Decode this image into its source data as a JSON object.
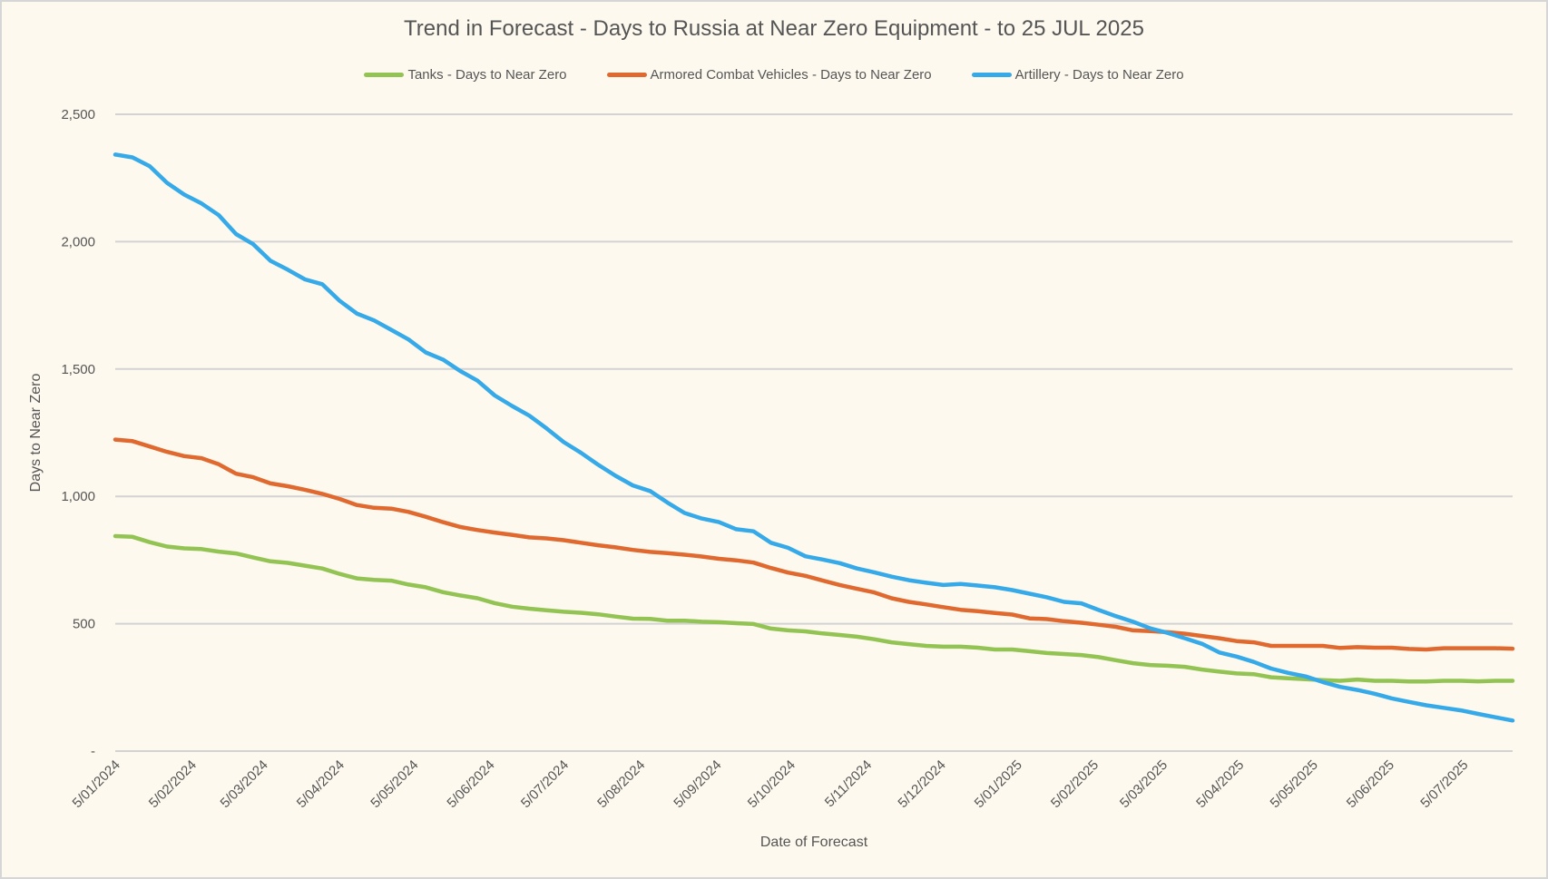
{
  "chart_data": {
    "type": "line",
    "title": "Trend in Forecast - Days to Russia at Near Zero Equipment - to 25 JUL 2025",
    "xlabel": "Date of Forecast",
    "ylabel": "Days to Near Zero",
    "ylim": [
      0,
      2500
    ],
    "yticks": [
      0,
      500,
      1000,
      1500,
      2000,
      2500
    ],
    "ytick_labels": [
      "-",
      "500",
      "1,000",
      "1,500",
      "2,000",
      "2,500"
    ],
    "xlim": [
      "5/01/2024",
      "25/07/2025"
    ],
    "xtick_labels": [
      "5/01/2024",
      "5/02/2024",
      "5/03/2024",
      "5/04/2024",
      "5/05/2024",
      "5/06/2024",
      "5/07/2024",
      "5/08/2024",
      "5/09/2024",
      "5/10/2024",
      "5/11/2024",
      "5/12/2024",
      "5/01/2025",
      "5/02/2025",
      "5/03/2025",
      "5/04/2025",
      "5/05/2025",
      "5/06/2025",
      "5/07/2025"
    ],
    "grid": true,
    "legend_position": "top",
    "x": [
      "5/01/2024",
      "12/01/2024",
      "19/01/2024",
      "26/01/2024",
      "2/02/2024",
      "9/02/2024",
      "16/02/2024",
      "23/02/2024",
      "1/03/2024",
      "8/03/2024",
      "15/03/2024",
      "22/03/2024",
      "29/03/2024",
      "5/04/2024",
      "12/04/2024",
      "19/04/2024",
      "26/04/2024",
      "3/05/2024",
      "10/05/2024",
      "17/05/2024",
      "24/05/2024",
      "31/05/2024",
      "7/06/2024",
      "14/06/2024",
      "21/06/2024",
      "28/06/2024",
      "5/07/2024",
      "12/07/2024",
      "19/07/2024",
      "26/07/2024",
      "2/08/2024",
      "9/08/2024",
      "16/08/2024",
      "23/08/2024",
      "30/08/2024",
      "6/09/2024",
      "13/09/2024",
      "20/09/2024",
      "27/09/2024",
      "4/10/2024",
      "11/10/2024",
      "18/10/2024",
      "25/10/2024",
      "1/11/2024",
      "8/11/2024",
      "15/11/2024",
      "22/11/2024",
      "29/11/2024",
      "6/12/2024",
      "13/12/2024",
      "20/12/2024",
      "27/12/2024",
      "3/01/2025",
      "10/01/2025",
      "17/01/2025",
      "24/01/2025",
      "31/01/2025",
      "7/02/2025",
      "14/02/2025",
      "21/02/2025",
      "28/02/2025",
      "7/03/2025",
      "14/03/2025",
      "21/03/2025",
      "28/03/2025",
      "4/04/2025",
      "11/04/2025",
      "18/04/2025",
      "25/04/2025",
      "2/05/2025",
      "9/05/2025",
      "16/05/2025",
      "23/05/2025",
      "30/05/2025",
      "6/06/2025",
      "13/06/2025",
      "20/06/2025",
      "27/06/2025",
      "4/07/2025",
      "11/07/2025",
      "18/07/2025",
      "25/07/2025"
    ],
    "series": [
      {
        "name": "Tanks - Days to Near Zero",
        "color": "#92c353",
        "values": [
          844,
          841,
          820,
          803,
          796,
          793,
          783,
          776,
          760,
          745,
          739,
          728,
          717,
          696,
          678,
          672,
          669,
          654,
          643,
          624,
          611,
          600,
          581,
          567,
          559,
          553,
          547,
          543,
          537,
          528,
          520,
          519,
          512,
          512,
          508,
          506,
          502,
          499,
          481,
          474,
          470,
          462,
          456,
          449,
          439,
          427,
          420,
          413,
          410,
          410,
          406,
          399,
          399,
          392,
          385,
          381,
          377,
          369,
          357,
          345,
          338,
          335,
          331,
          320,
          312,
          305,
          302,
          290,
          286,
          282,
          279,
          276,
          281,
          276,
          276,
          273,
          273,
          276,
          276,
          274,
          276,
          276
        ]
      },
      {
        "name": "Armored Combat Vehicles - Days to Near Zero",
        "color": "#e0692f",
        "values": [
          1223,
          1217,
          1196,
          1175,
          1158,
          1150,
          1126,
          1089,
          1075,
          1051,
          1040,
          1026,
          1010,
          990,
          966,
          955,
          952,
          939,
          920,
          899,
          880,
          868,
          858,
          849,
          839,
          835,
          828,
          818,
          808,
          800,
          790,
          782,
          777,
          771,
          764,
          755,
          749,
          740,
          719,
          701,
          688,
          670,
          652,
          637,
          623,
          600,
          586,
          576,
          565,
          555,
          549,
          542,
          536,
          521,
          518,
          510,
          504,
          496,
          488,
          474,
          471,
          467,
          461,
          452,
          443,
          432,
          427,
          413,
          413,
          413,
          413,
          405,
          408,
          406,
          406,
          401,
          399,
          404,
          404,
          404,
          404,
          402
        ]
      },
      {
        "name": "Artillery - Days to Near Zero",
        "color": "#36a9e8",
        "values": [
          2342,
          2331,
          2296,
          2231,
          2185,
          2150,
          2104,
          2030,
          1990,
          1925,
          1890,
          1852,
          1833,
          1768,
          1718,
          1691,
          1654,
          1616,
          1565,
          1537,
          1492,
          1454,
          1396,
          1355,
          1317,
          1267,
          1213,
          1171,
          1124,
          1081,
          1043,
          1021,
          976,
          935,
          913,
          899,
          871,
          863,
          818,
          798,
          765,
          752,
          738,
          717,
          702,
          685,
          671,
          661,
          652,
          656,
          650,
          643,
          632,
          618,
          604,
          586,
          580,
          554,
          530,
          508,
          482,
          464,
          443,
          421,
          387,
          371,
          350,
          324,
          307,
          293,
          271,
          252,
          240,
          225,
          207,
          193,
          180,
          170,
          160,
          146,
          133,
          120
        ]
      }
    ]
  }
}
